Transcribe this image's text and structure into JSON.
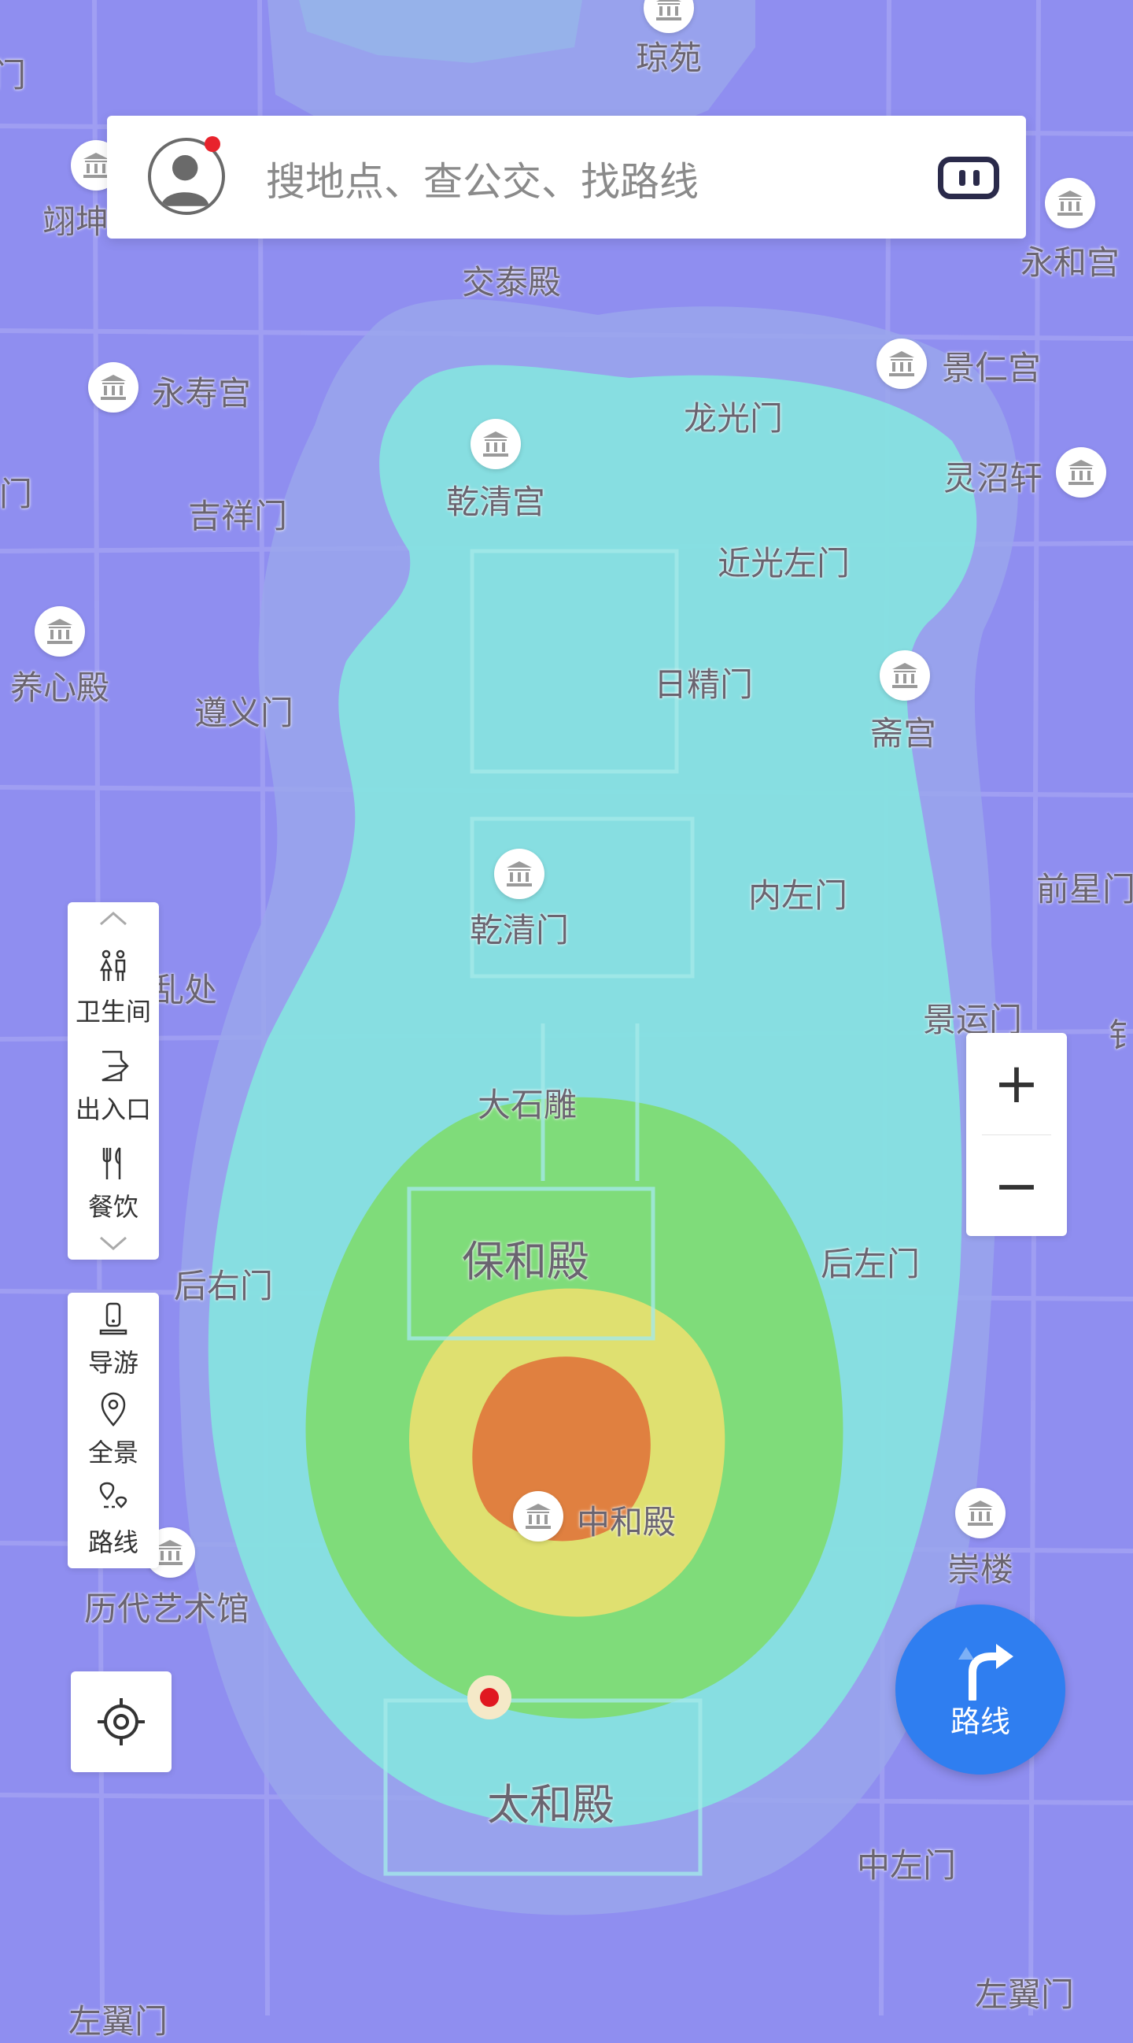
{
  "search": {
    "placeholder": "搜地点、查公交、找路线"
  },
  "places": [
    {
      "name": "琼苑",
      "icon": "museum-icon"
    },
    {
      "name": "永和宫",
      "icon": "museum-icon"
    },
    {
      "name": "交泰殿"
    },
    {
      "name": "景仁宫",
      "icon": "museum-icon"
    },
    {
      "name": "永寿宫",
      "icon": "museum-icon"
    },
    {
      "name": "龙光门"
    },
    {
      "name": "乾清宫",
      "icon": "museum-icon"
    },
    {
      "name": "灵沼轩",
      "icon": "museum-icon"
    },
    {
      "name": "吉祥门"
    },
    {
      "name": "近光左门"
    },
    {
      "name": "养心殿",
      "icon": "museum-icon"
    },
    {
      "name": "遵义门"
    },
    {
      "name": "日精门"
    },
    {
      "name": "斋宫",
      "icon": "museum-icon"
    },
    {
      "name": "乾清门",
      "icon": "museum-icon"
    },
    {
      "name": "内左门"
    },
    {
      "name": "前星门"
    },
    {
      "name": "景运门"
    },
    {
      "name": "大石雕"
    },
    {
      "name": "保和殿"
    },
    {
      "name": "后左门"
    },
    {
      "name": "后右门"
    },
    {
      "name": "中和殿",
      "icon": "museum-icon"
    },
    {
      "name": "崇楼",
      "icon": "museum-icon"
    },
    {
      "name": "历代艺术馆",
      "icon": "museum-icon"
    },
    {
      "name": "太和殿"
    },
    {
      "name": "中左门"
    },
    {
      "name": "左翼门"
    },
    {
      "name": "翊坤",
      "icon": "museum-icon"
    },
    {
      "name": "门"
    },
    {
      "name": "门"
    },
    {
      "name": "乱处"
    },
    {
      "name": "左翼门"
    },
    {
      "name": "钅"
    }
  ],
  "facilities_panel": {
    "items": [
      "卫生间",
      "出入口",
      "餐饮"
    ]
  },
  "tools_panel": {
    "items": [
      "导游",
      "全景",
      "路线"
    ]
  },
  "zoom": {
    "in": "+",
    "out": "−"
  },
  "route_button": {
    "label": "路线"
  },
  "colors": {
    "accent": "#2f7ef0",
    "heat_low": "#8f8ef0",
    "heat_mid": "#86e2e0",
    "heat_green": "#7fdc7a",
    "heat_yellow": "#dfe070",
    "heat_high": "#e08040"
  }
}
